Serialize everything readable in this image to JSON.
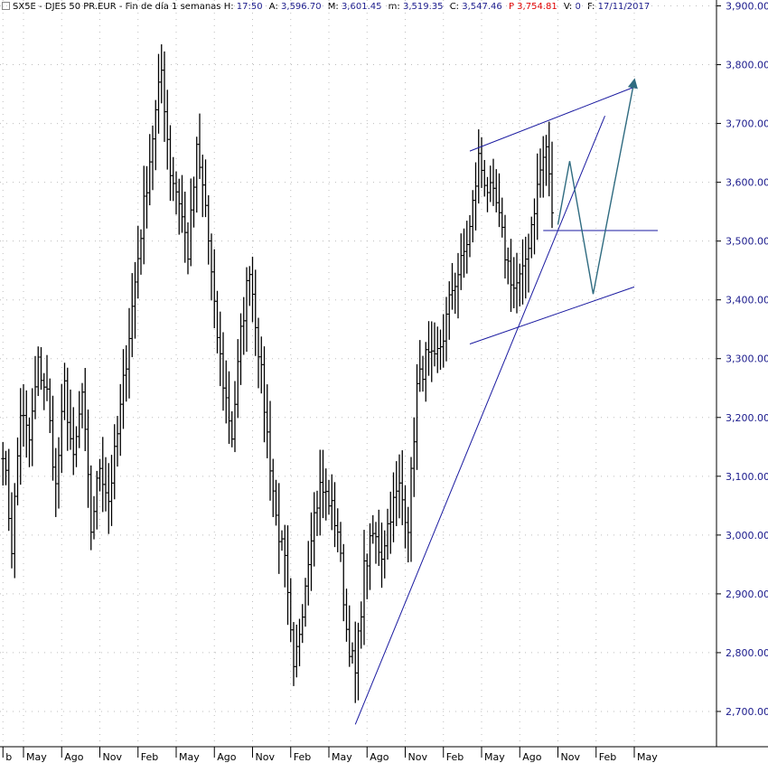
{
  "header": {
    "symbol": "SX5E",
    "name": "- DJES 50 PR.EUR -",
    "period": "Fin de día 1 semanas",
    "h_label": "H:",
    "h_value": "17:50",
    "a_label": "A:",
    "a_value": "3,596.70",
    "m_label": "M:",
    "m_value": "3,601.45",
    "m2_label": "m:",
    "m2_value": "3,519.35",
    "c_label": "C:",
    "c_value": "3,547.46",
    "p_label": "P",
    "p_value": "3,754.81",
    "v_label": "V:",
    "v_value": "0",
    "f_label": "F:",
    "f_value": "17/11/2017"
  },
  "colors": {
    "price": "#000000",
    "trendline": "#1a1aa0",
    "projection": "#2f6b80",
    "grid": "#bdbdbd",
    "axis_text": "#1a1a8c",
    "date_text": "#000000"
  },
  "chart_data": {
    "type": "bar",
    "subtype": "ohlc-weekly",
    "title": "SX5E - DJES 50 PR.EUR",
    "ylim": [
      2640,
      3910
    ],
    "y_ticks": [
      2700,
      2800,
      2900,
      3000,
      3100,
      3200,
      3300,
      3400,
      3500,
      3600,
      3700,
      3800,
      3900
    ],
    "y_tick_labels": [
      "2,700.00",
      "2,800.00",
      "2,900.00",
      "3,000.00",
      "3,100.00",
      "3,200.00",
      "3,300.00",
      "3,400.00",
      "3,500.00",
      "3,600.00",
      "3,700.00",
      "3,800.00",
      "3,900.00"
    ],
    "x_labels": [
      "b",
      "May",
      "Ago",
      "Nov",
      "Feb",
      "May",
      "Ago",
      "Nov",
      "Feb",
      "May",
      "Ago",
      "Nov",
      "Feb",
      "May",
      "Ago",
      "Nov",
      "Feb",
      "May"
    ],
    "x_week_index": [
      0,
      7,
      20,
      33,
      46,
      59,
      72,
      85,
      98,
      111,
      124,
      137,
      150,
      163,
      176,
      189,
      202,
      215
    ],
    "x_range_weeks": [
      -1,
      243
    ],
    "grid": true,
    "close_series_anchors": [
      [
        0,
        3150
      ],
      [
        3,
        2980
      ],
      [
        6,
        3210
      ],
      [
        9,
        3160
      ],
      [
        12,
        3290
      ],
      [
        15,
        3240
      ],
      [
        18,
        3080
      ],
      [
        21,
        3250
      ],
      [
        24,
        3120
      ],
      [
        27,
        3240
      ],
      [
        30,
        3010
      ],
      [
        33,
        3120
      ],
      [
        36,
        3060
      ],
      [
        39,
        3170
      ],
      [
        42,
        3300
      ],
      [
        45,
        3430
      ],
      [
        48,
        3560
      ],
      [
        51,
        3680
      ],
      [
        54,
        3790
      ],
      [
        57,
        3620
      ],
      [
        60,
        3570
      ],
      [
        63,
        3480
      ],
      [
        66,
        3650
      ],
      [
        69,
        3560
      ],
      [
        72,
        3380
      ],
      [
        75,
        3260
      ],
      [
        78,
        3170
      ],
      [
        81,
        3340
      ],
      [
        84,
        3460
      ],
      [
        87,
        3320
      ],
      [
        90,
        3170
      ],
      [
        93,
        3030
      ],
      [
        96,
        2950
      ],
      [
        99,
        2760
      ],
      [
        102,
        2880
      ],
      [
        105,
        3010
      ],
      [
        108,
        3080
      ],
      [
        111,
        3060
      ],
      [
        114,
        3010
      ],
      [
        117,
        2840
      ],
      [
        120,
        2760
      ],
      [
        123,
        2940
      ],
      [
        126,
        3000
      ],
      [
        129,
        2970
      ],
      [
        132,
        3040
      ],
      [
        135,
        3080
      ],
      [
        138,
        3020
      ],
      [
        141,
        3250
      ],
      [
        144,
        3300
      ],
      [
        147,
        3290
      ],
      [
        150,
        3340
      ],
      [
        153,
        3420
      ],
      [
        156,
        3460
      ],
      [
        159,
        3520
      ],
      [
        162,
        3640
      ],
      [
        165,
        3590
      ],
      [
        168,
        3560
      ],
      [
        171,
        3480
      ],
      [
        174,
        3420
      ],
      [
        177,
        3440
      ],
      [
        180,
        3530
      ],
      [
        183,
        3620
      ],
      [
        185,
        3660
      ],
      [
        187,
        3548
      ]
    ],
    "trendlines": [
      {
        "name": "rising-support",
        "from": [
          120,
          2678
        ],
        "to": [
          205,
          3713
        ]
      },
      {
        "name": "channel-upper",
        "from": [
          159,
          3653
        ],
        "to": [
          215,
          3762
        ]
      },
      {
        "name": "channel-lower",
        "from": [
          159,
          3325
        ],
        "to": [
          215,
          3422
        ]
      },
      {
        "name": "horizontal-support",
        "from": [
          184,
          3518
        ],
        "to": [
          223,
          3518
        ]
      }
    ],
    "projection": {
      "points": [
        [
          189,
          3528
        ],
        [
          193,
          3636
        ],
        [
          201,
          3410
        ],
        [
          215,
          3773
        ]
      ]
    }
  }
}
